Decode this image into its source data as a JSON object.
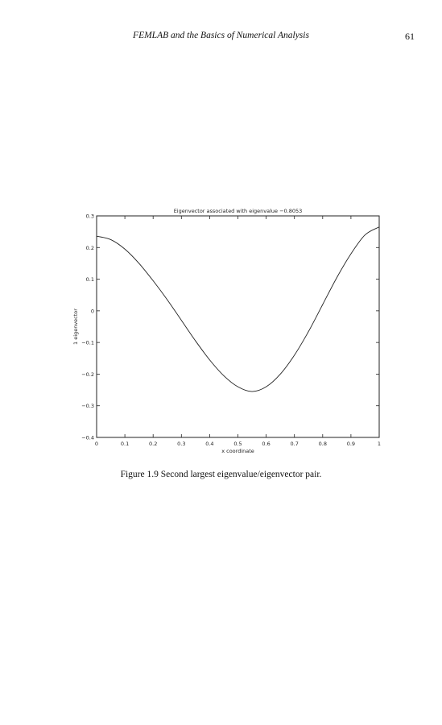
{
  "header": {
    "running_title": "FEMLAB and the Basics of Numerical Analysis",
    "page_number": "61"
  },
  "figure": {
    "caption": "Figure 1.9  Second largest eigenvalue/eigenvector pair."
  },
  "chart_data": {
    "type": "line",
    "title": "Eigenvector associated with eigenvalue −0.8053",
    "xlabel": "x coordinate",
    "ylabel": "1 eigenvector",
    "xlim": [
      0,
      1
    ],
    "ylim": [
      -0.4,
      0.3
    ],
    "xticks": [
      "0",
      "0.1",
      "0.2",
      "0.3",
      "0.4",
      "0.5",
      "0.6",
      "0.7",
      "0.8",
      "0.9",
      "1"
    ],
    "yticks": [
      "0.3",
      "0.2",
      "0.1",
      "0",
      "−0.1",
      "−0.2",
      "−0.3",
      "−0.4"
    ],
    "grid": false,
    "series": [
      {
        "x": [
          0,
          0.05,
          0.1,
          0.15,
          0.2,
          0.25,
          0.3,
          0.35,
          0.4,
          0.45,
          0.5,
          0.55,
          0.6,
          0.65,
          0.7,
          0.75,
          0.8,
          0.85,
          0.9,
          0.95,
          1
        ],
        "values": [
          0.236,
          0.225,
          0.195,
          0.15,
          0.095,
          0.035,
          -0.03,
          -0.095,
          -0.155,
          -0.205,
          -0.24,
          -0.255,
          -0.24,
          -0.2,
          -0.14,
          -0.065,
          0.02,
          0.105,
          0.18,
          0.24,
          0.265
        ]
      }
    ]
  }
}
